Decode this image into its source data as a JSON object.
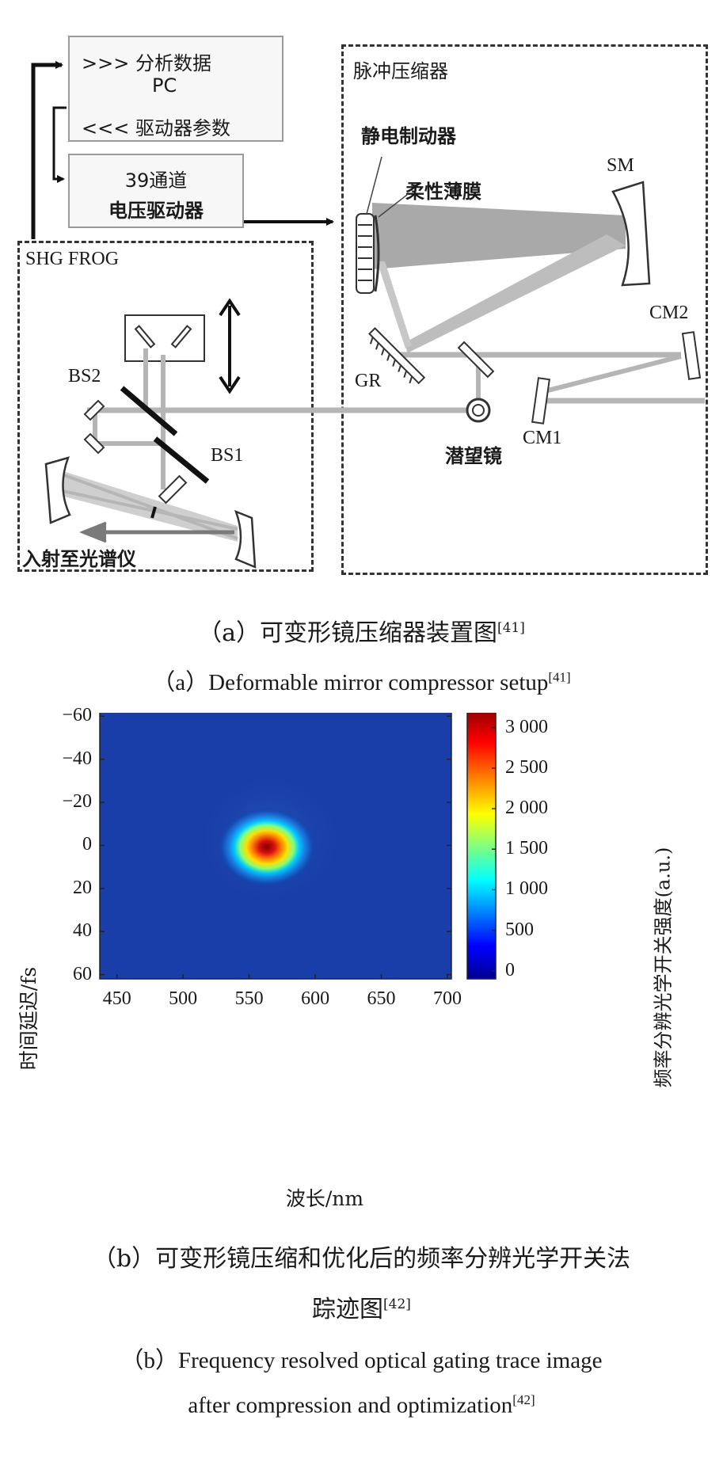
{
  "setup": {
    "pc_box": {
      "analyze": ">>> 分析数据",
      "pc": "PC",
      "driver_params": "<<< 驱动器参数"
    },
    "driver_box": {
      "line1": "39通道",
      "line2": "电压驱动器"
    },
    "compressor_title": "脉冲压缩器",
    "labels": {
      "actuator": "静电制动器",
      "membrane": "柔性薄膜",
      "sm": "SM",
      "cm2": "CM2",
      "gr": "GR",
      "cm1": "CM1",
      "periscope": "潜望镜",
      "frog_title": "SHG FROG",
      "bs2": "BS2",
      "bs1": "BS1",
      "to_spectrometer": "入射至光谱仪"
    }
  },
  "caption_a": {
    "zh": "（a）可变形镜压缩器装置图",
    "zh_ref": "[41]",
    "en": "（a）Deformable mirror compressor setup",
    "en_ref": "[41]"
  },
  "chart_data": {
    "type": "heatmap",
    "xlabel": "波长/nm",
    "ylabel": "时间延迟/fs",
    "colorbar_label": "频率分辨光学开关强度(a.u.)",
    "x_ticks": [
      "450",
      "500",
      "550",
      "600",
      "650",
      "700"
    ],
    "y_ticks": [
      "-60",
      "-40",
      "-20",
      "0",
      "20",
      "40",
      "60"
    ],
    "colorbar_ticks": [
      "3 000",
      "2 500",
      "2 000",
      "1 500",
      "1 000",
      "500",
      "0"
    ],
    "xlim": [
      437,
      703
    ],
    "ylim": [
      62,
      -66
    ],
    "clim": [
      -100,
      3300
    ],
    "colormap": "jet",
    "peak": {
      "x": 561,
      "y": 0,
      "value": 3250
    },
    "background_value": 0
  },
  "caption_b": {
    "zh_line1": "（b）可变形镜压缩和优化后的频率分辨光学开关法",
    "zh_line2": "踪迹图",
    "zh_ref": "[42]",
    "en_line1": "（b）Frequency resolved optical gating trace image",
    "en_line2": "after compression and optimization",
    "en_ref": "[42]"
  }
}
